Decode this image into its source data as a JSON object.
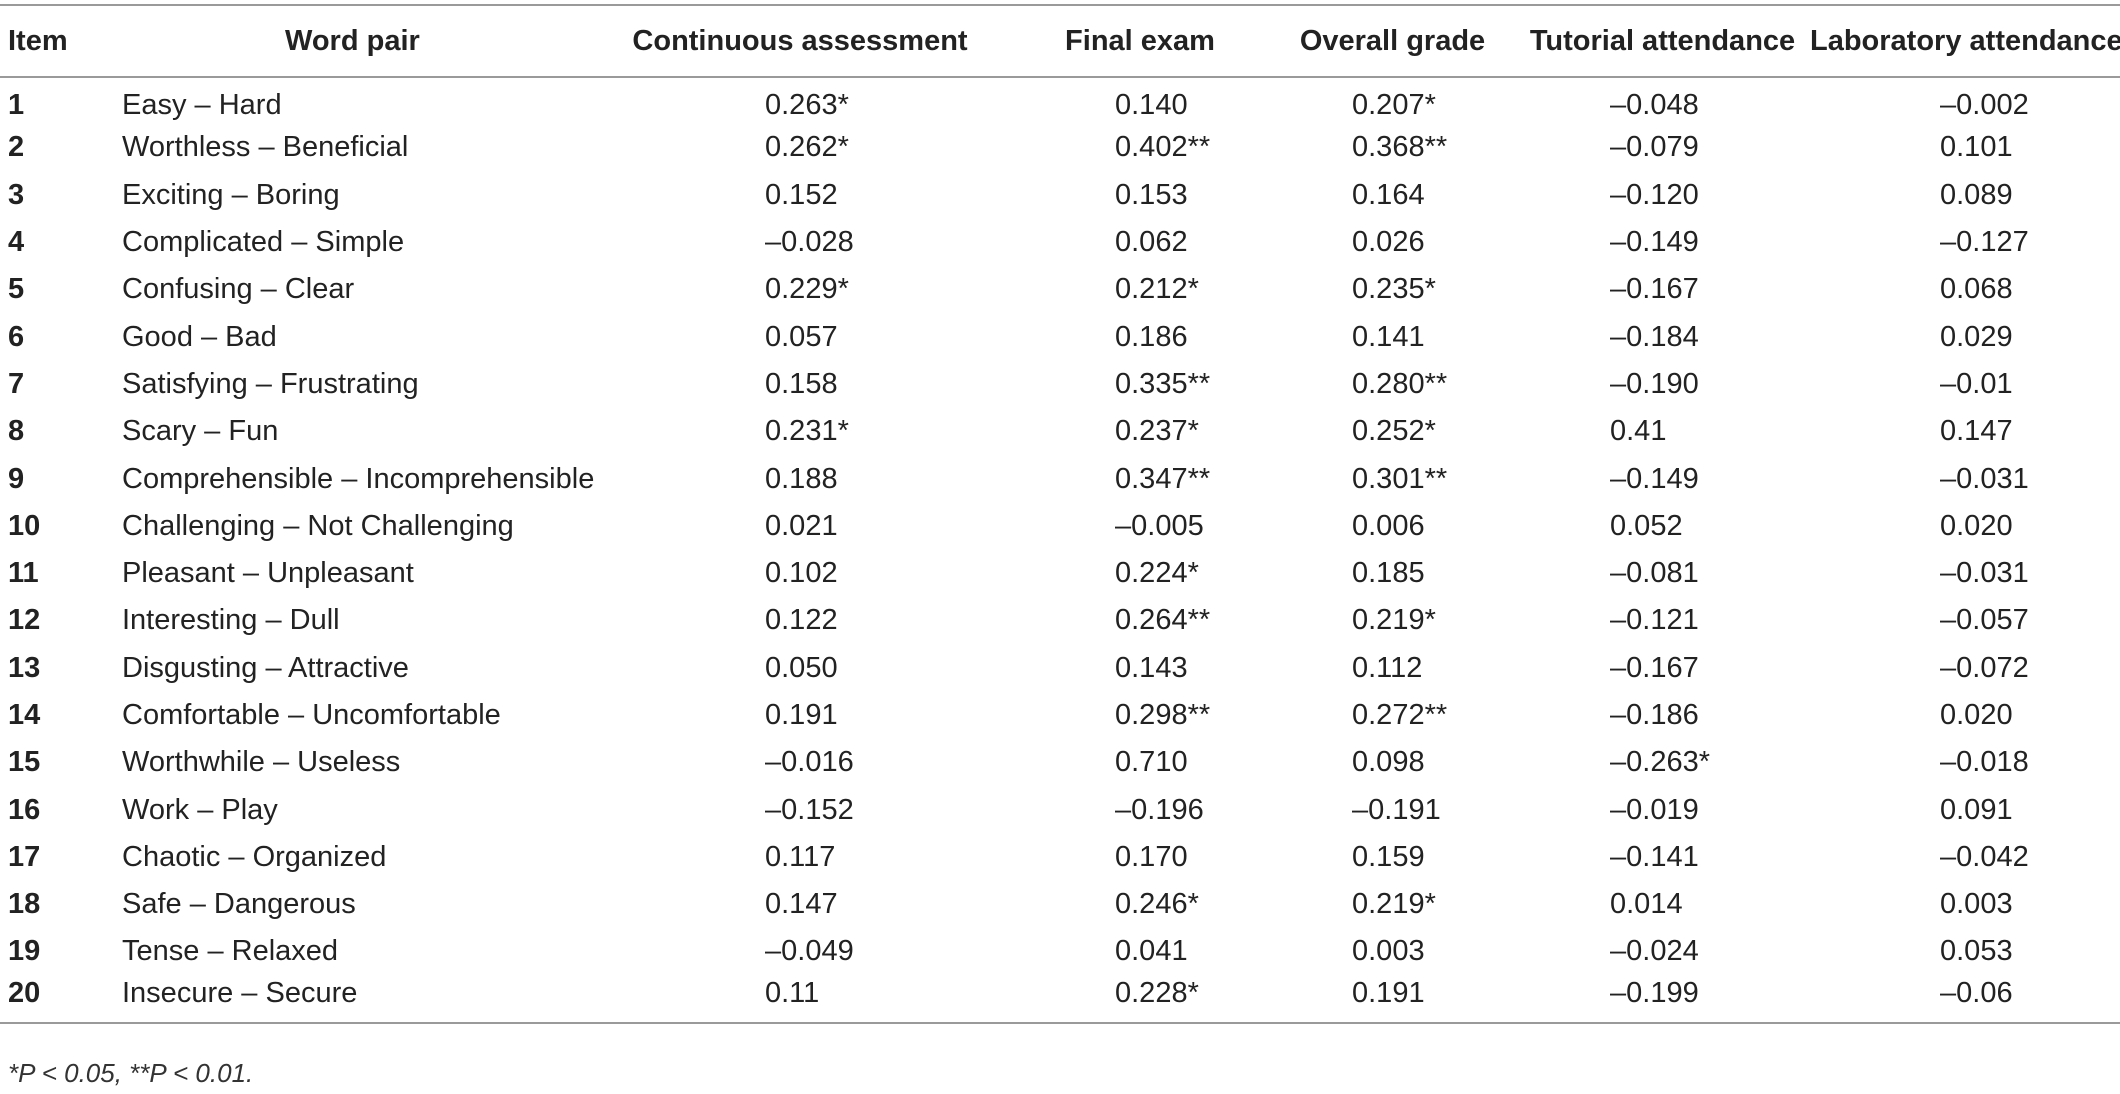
{
  "table": {
    "headers": [
      "Item",
      "Word pair",
      "Continuous assessment",
      "Final exam",
      "Overall grade",
      "Tutorial attendance",
      "Laboratory attendance"
    ],
    "rows": [
      [
        "1",
        "Easy – Hard",
        "0.263*",
        "0.140",
        "0.207*",
        "–0.048",
        "–0.002"
      ],
      [
        "2",
        "Worthless – Beneficial",
        "0.262*",
        "0.402**",
        "0.368**",
        "–0.079",
        "0.101"
      ],
      [
        "3",
        "Exciting – Boring",
        "0.152",
        "0.153",
        "0.164",
        "–0.120",
        "0.089"
      ],
      [
        "4",
        "Complicated – Simple",
        "–0.028",
        "0.062",
        "0.026",
        "–0.149",
        "–0.127"
      ],
      [
        "5",
        "Confusing – Clear",
        "0.229*",
        "0.212*",
        "0.235*",
        "–0.167",
        "0.068"
      ],
      [
        "6",
        "Good – Bad",
        "0.057",
        "0.186",
        "0.141",
        "–0.184",
        "0.029"
      ],
      [
        "7",
        "Satisfying – Frustrating",
        "0.158",
        "0.335**",
        "0.280**",
        "–0.190",
        "–0.01"
      ],
      [
        "8",
        "Scary – Fun",
        "0.231*",
        "0.237*",
        "0.252*",
        "0.41",
        "0.147"
      ],
      [
        "9",
        "Comprehensible – Incomprehensible",
        "0.188",
        "0.347**",
        "0.301**",
        "–0.149",
        "–0.031"
      ],
      [
        "10",
        "Challenging – Not Challenging",
        "0.021",
        "–0.005",
        "0.006",
        "0.052",
        "0.020"
      ],
      [
        "11",
        "Pleasant – Unpleasant",
        "0.102",
        "0.224*",
        "0.185",
        "–0.081",
        "–0.031"
      ],
      [
        "12",
        "Interesting – Dull",
        "0.122",
        "0.264**",
        "0.219*",
        "–0.121",
        "–0.057"
      ],
      [
        "13",
        "Disgusting – Attractive",
        "0.050",
        "0.143",
        "0.112",
        "–0.167",
        "–0.072"
      ],
      [
        "14",
        "Comfortable – Uncomfortable",
        "0.191",
        "0.298**",
        "0.272**",
        "–0.186",
        "0.020"
      ],
      [
        "15",
        "Worthwhile – Useless",
        "–0.016",
        "0.710",
        "0.098",
        "–0.263*",
        "–0.018"
      ],
      [
        "16",
        "Work – Play",
        "–0.152",
        "–0.196",
        "–0.191",
        "–0.019",
        "0.091"
      ],
      [
        "17",
        "Chaotic – Organized",
        "0.117",
        "0.170",
        "0.159",
        "–0.141",
        "–0.042"
      ],
      [
        "18",
        "Safe – Dangerous",
        "0.147",
        "0.246*",
        "0.219*",
        "0.014",
        "0.003"
      ],
      [
        "19",
        "Tense – Relaxed",
        "–0.049",
        "0.041",
        "0.003",
        "–0.024",
        "0.053"
      ],
      [
        "20",
        "Insecure – Secure",
        "0.11",
        "0.228*",
        "0.191",
        "–0.199",
        "–0.06"
      ]
    ]
  },
  "footnote": "*P < 0.05, **P < 0.01."
}
